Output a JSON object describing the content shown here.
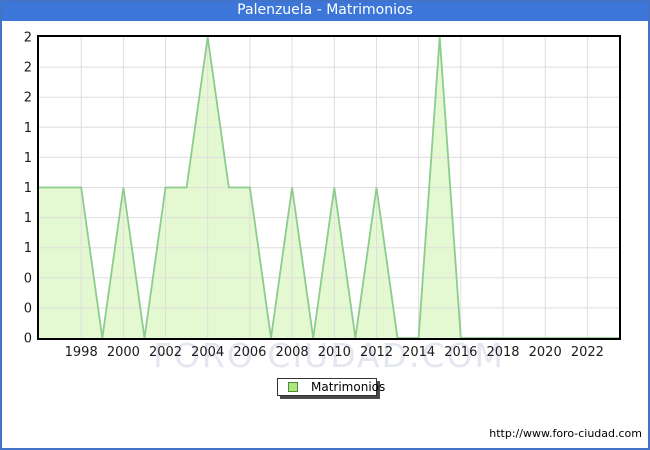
{
  "window": {
    "title": "Palenzuela - Matrimonios"
  },
  "legend": {
    "label": "Matrimonios"
  },
  "watermark": "FORO CIUDAD.COM",
  "footer": {
    "url": "http://www.foro-ciudad.com"
  },
  "colors": {
    "titlebar_bg": "#3B76D8",
    "frame_border": "#4273C6",
    "area_fill": "#E4F8D2",
    "area_line": "#8CCC8C",
    "legend_swatch_fill": "#ACE67E",
    "legend_swatch_border": "#4E8A2E",
    "gridline": "#DEDEDE",
    "axis_border": "#000000",
    "tick_text": "#1C1C1C",
    "watermark_text": "#E4E7EF"
  },
  "chart_data": {
    "type": "area",
    "title": "Palenzuela - Matrimonios",
    "x": [
      1996,
      1997,
      1998,
      1999,
      2000,
      2001,
      2002,
      2003,
      2004,
      2005,
      2006,
      2007,
      2008,
      2009,
      2010,
      2011,
      2012,
      2013,
      2014,
      2015,
      2016,
      2017,
      2018,
      2019,
      2020,
      2021,
      2022,
      2023
    ],
    "series": [
      {
        "name": "Matrimonios",
        "values": [
          1,
          1,
          1,
          0,
          1,
          0,
          1,
          1,
          2,
          1,
          1,
          0,
          1,
          0,
          1,
          0,
          1,
          0,
          0,
          2,
          0,
          0,
          0,
          0,
          0,
          0,
          0,
          0
        ]
      }
    ],
    "xlim": [
      1996,
      2023.5
    ],
    "ylim": [
      0,
      2
    ],
    "x_tick_years": [
      1998,
      2000,
      2002,
      2004,
      2006,
      2008,
      2010,
      2012,
      2014,
      2016,
      2018,
      2020,
      2022
    ],
    "y_tick_labels_top_to_bottom": [
      "2",
      "2",
      "2",
      "1",
      "1",
      "1",
      "1",
      "1",
      "0",
      "0",
      "0"
    ],
    "grid": true,
    "legend_position": "bottom-center"
  }
}
